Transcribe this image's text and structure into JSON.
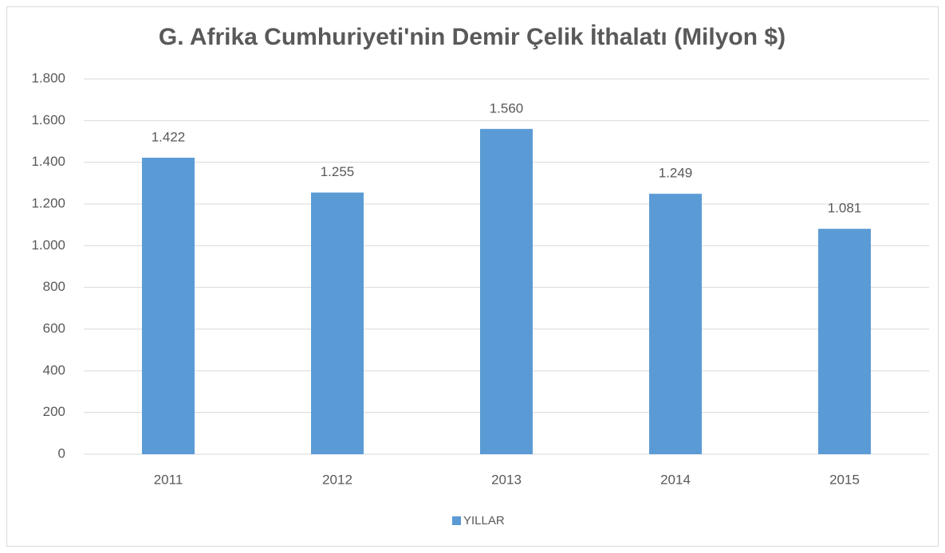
{
  "chart_data": {
    "type": "bar",
    "title": "G. Afrika Cumhuriyeti'nin Demir Çelik İthalatı (Milyon $)",
    "categories": [
      "2011",
      "2012",
      "2013",
      "2014",
      "2015"
    ],
    "series": [
      {
        "name": "YILLAR",
        "color": "#5b9bd5",
        "values": [
          1422,
          1255,
          1560,
          1249,
          1081
        ],
        "value_labels": [
          "1.422",
          "1.255",
          "1.560",
          "1.249",
          "1.081"
        ]
      }
    ],
    "ylim": [
      0,
      1800
    ],
    "yticks": [
      0,
      200,
      400,
      600,
      800,
      {
        "value": 1000,
        "label": "1.000"
      },
      {
        "value": 1200,
        "label": "1.200"
      },
      {
        "value": 1400,
        "label": "1.400"
      },
      {
        "value": 1600,
        "label": "1.600"
      },
      {
        "value": 1800,
        "label": "1.800"
      }
    ],
    "grid": true,
    "legend": "bottom"
  }
}
